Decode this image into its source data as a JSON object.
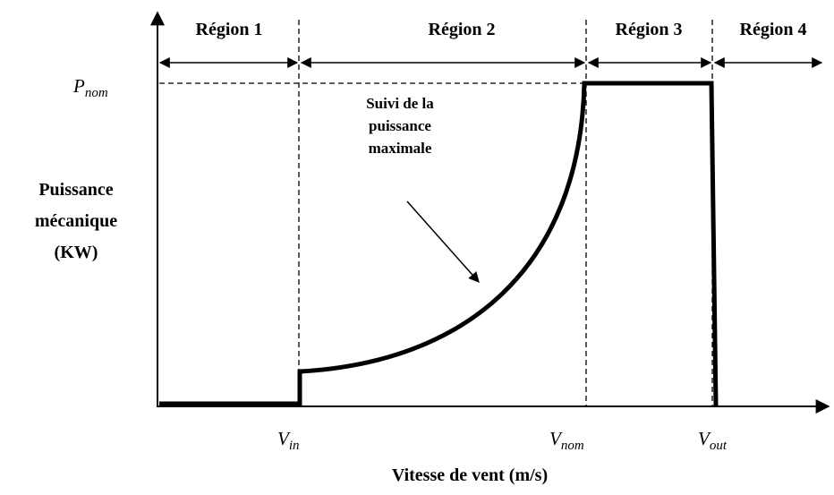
{
  "regions": [
    "Région 1",
    "Région 2",
    "Région 3",
    "Région 4"
  ],
  "y_level": {
    "symbol": "P",
    "subscript": "nom"
  },
  "x_markers": [
    {
      "symbol": "V",
      "subscript": "in"
    },
    {
      "symbol": "V",
      "subscript": "nom"
    },
    {
      "symbol": "V",
      "subscript": "out"
    }
  ],
  "y_axis_label": [
    "Puissance",
    "mécanique",
    "(KW)"
  ],
  "x_axis_label": "Vitesse de vent (m/s)",
  "annotation": [
    "Suivi de la",
    "puissance",
    "maximale"
  ]
}
